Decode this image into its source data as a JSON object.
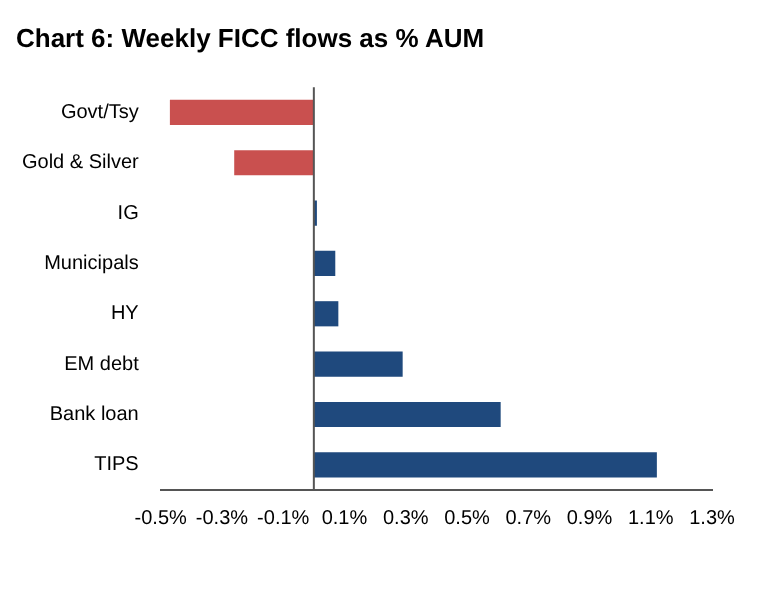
{
  "chart_data": {
    "type": "bar",
    "orientation": "horizontal",
    "title": "Chart 6: Weekly FICC flows as % AUM",
    "categories": [
      "Govt/Tsy",
      "Gold & Silver",
      "IG",
      "Municipals",
      "HY",
      "EM debt",
      "Bank loan",
      "TIPS"
    ],
    "values": [
      -0.47,
      -0.26,
      0.01,
      0.07,
      0.08,
      0.29,
      0.61,
      1.12
    ],
    "colors": [
      "#c9504f",
      "#c9504f",
      "#1f497d",
      "#1f497d",
      "#1f497d",
      "#1f497d",
      "#1f497d",
      "#1f497d"
    ],
    "xlim": [
      -0.5,
      1.3
    ],
    "xticks": [
      {
        "value": -0.5,
        "label": "-0.5%"
      },
      {
        "value": -0.3,
        "label": "-0.3%"
      },
      {
        "value": -0.1,
        "label": "-0.1%"
      },
      {
        "value": 0.1,
        "label": "0.1%"
      },
      {
        "value": 0.3,
        "label": "0.3%"
      },
      {
        "value": 0.5,
        "label": "0.5%"
      },
      {
        "value": 0.7,
        "label": "0.7%"
      },
      {
        "value": 0.9,
        "label": "0.9%"
      },
      {
        "value": 1.1,
        "label": "1.1%"
      },
      {
        "value": 1.3,
        "label": "1.3%"
      }
    ],
    "grid": false,
    "legend": false
  }
}
